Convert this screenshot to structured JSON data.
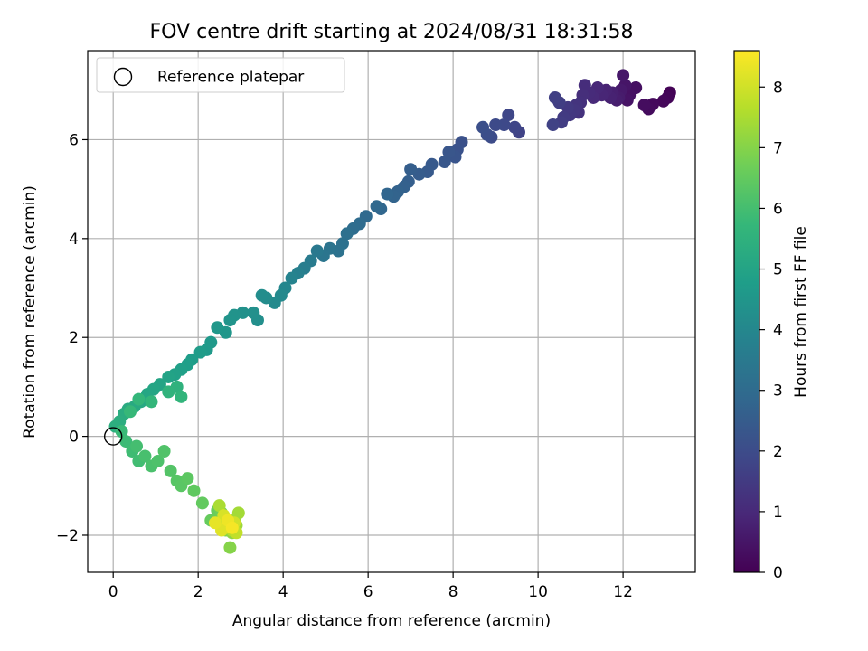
{
  "chart_data": {
    "type": "scatter",
    "title": "FOV centre drift starting at 2024/08/31 18:31:58",
    "xlabel": "Angular distance from reference (arcmin)",
    "ylabel": "Rotation from reference (arcmin)",
    "xlim": [
      -0.6,
      13.7
    ],
    "ylim": [
      -2.75,
      7.8
    ],
    "xticks": [
      0,
      2,
      4,
      6,
      8,
      10,
      12
    ],
    "yticks": [
      -2,
      0,
      2,
      4,
      6
    ],
    "xtick_labels": [
      "0",
      "2",
      "4",
      "6",
      "8",
      "10",
      "12"
    ],
    "ytick_labels": [
      "−2",
      "0",
      "2",
      "4",
      "6"
    ],
    "grid": true,
    "legend": {
      "location": "upper-left",
      "entries": [
        {
          "label": "Reference platepar",
          "marker": "open-circle"
        }
      ]
    },
    "reference_point": {
      "x": 0,
      "y": 0
    },
    "colorbar": {
      "label": "Hours from first FF file",
      "colormap": "viridis",
      "range": [
        0,
        8.6
      ],
      "ticks": [
        0,
        1,
        2,
        3,
        4,
        5,
        6,
        7,
        8
      ],
      "tick_labels": [
        "0",
        "1",
        "2",
        "3",
        "4",
        "5",
        "6",
        "7",
        "8"
      ],
      "stops": [
        "#440154",
        "#482878",
        "#3e4989",
        "#31688e",
        "#26828e",
        "#1f9e89",
        "#35b779",
        "#6ece58",
        "#b5de2b",
        "#fde725"
      ]
    },
    "points": [
      {
        "x": 13.1,
        "y": 6.95,
        "h": 0.05
      },
      {
        "x": 13.05,
        "y": 6.85,
        "h": 0.1
      },
      {
        "x": 12.95,
        "y": 6.78,
        "h": 0.15
      },
      {
        "x": 12.7,
        "y": 6.72,
        "h": 0.2
      },
      {
        "x": 12.6,
        "y": 6.62,
        "h": 0.25
      },
      {
        "x": 12.5,
        "y": 6.7,
        "h": 0.3
      },
      {
        "x": 12.3,
        "y": 7.05,
        "h": 0.35
      },
      {
        "x": 12.15,
        "y": 6.9,
        "h": 0.4
      },
      {
        "x": 12.1,
        "y": 6.8,
        "h": 0.45
      },
      {
        "x": 12.05,
        "y": 7.1,
        "h": 0.5
      },
      {
        "x": 12.0,
        "y": 7.3,
        "h": 0.55
      },
      {
        "x": 11.95,
        "y": 7.0,
        "h": 0.6
      },
      {
        "x": 11.9,
        "y": 6.85,
        "h": 0.65
      },
      {
        "x": 11.85,
        "y": 6.8,
        "h": 0.7
      },
      {
        "x": 11.75,
        "y": 6.95,
        "h": 0.75
      },
      {
        "x": 11.7,
        "y": 6.85,
        "h": 0.8
      },
      {
        "x": 11.6,
        "y": 7.0,
        "h": 0.85
      },
      {
        "x": 11.5,
        "y": 6.9,
        "h": 0.9
      },
      {
        "x": 11.4,
        "y": 7.05,
        "h": 0.95
      },
      {
        "x": 11.3,
        "y": 6.85,
        "h": 1.0
      },
      {
        "x": 11.2,
        "y": 6.95,
        "h": 1.05
      },
      {
        "x": 11.1,
        "y": 7.1,
        "h": 1.1
      },
      {
        "x": 11.05,
        "y": 6.9,
        "h": 1.15
      },
      {
        "x": 11.0,
        "y": 6.75,
        "h": 1.2
      },
      {
        "x": 10.95,
        "y": 6.55,
        "h": 1.25
      },
      {
        "x": 10.9,
        "y": 6.7,
        "h": 1.3
      },
      {
        "x": 10.85,
        "y": 6.6,
        "h": 1.35
      },
      {
        "x": 10.75,
        "y": 6.5,
        "h": 1.4
      },
      {
        "x": 10.7,
        "y": 6.65,
        "h": 1.45
      },
      {
        "x": 10.6,
        "y": 6.45,
        "h": 1.5
      },
      {
        "x": 10.55,
        "y": 6.35,
        "h": 1.55
      },
      {
        "x": 10.5,
        "y": 6.75,
        "h": 1.6
      },
      {
        "x": 10.4,
        "y": 6.85,
        "h": 1.65
      },
      {
        "x": 10.35,
        "y": 6.3,
        "h": 1.7
      },
      {
        "x": 9.55,
        "y": 6.15,
        "h": 1.75
      },
      {
        "x": 9.45,
        "y": 6.25,
        "h": 1.8
      },
      {
        "x": 9.3,
        "y": 6.5,
        "h": 1.85
      },
      {
        "x": 9.2,
        "y": 6.3,
        "h": 1.9
      },
      {
        "x": 9.0,
        "y": 6.3,
        "h": 1.95
      },
      {
        "x": 8.9,
        "y": 6.05,
        "h": 2.0
      },
      {
        "x": 8.8,
        "y": 6.1,
        "h": 2.05
      },
      {
        "x": 8.7,
        "y": 6.25,
        "h": 2.1
      },
      {
        "x": 8.2,
        "y": 5.95,
        "h": 2.15
      },
      {
        "x": 8.1,
        "y": 5.8,
        "h": 2.2
      },
      {
        "x": 8.05,
        "y": 5.65,
        "h": 2.25
      },
      {
        "x": 7.9,
        "y": 5.75,
        "h": 2.3
      },
      {
        "x": 7.8,
        "y": 5.55,
        "h": 2.35
      },
      {
        "x": 7.5,
        "y": 5.5,
        "h": 2.4
      },
      {
        "x": 7.4,
        "y": 5.35,
        "h": 2.45
      },
      {
        "x": 7.2,
        "y": 5.3,
        "h": 2.5
      },
      {
        "x": 7.0,
        "y": 5.4,
        "h": 2.55
      },
      {
        "x": 6.95,
        "y": 5.15,
        "h": 2.6
      },
      {
        "x": 6.85,
        "y": 5.05,
        "h": 2.65
      },
      {
        "x": 6.7,
        "y": 4.95,
        "h": 2.7
      },
      {
        "x": 6.6,
        "y": 4.85,
        "h": 2.75
      },
      {
        "x": 6.45,
        "y": 4.9,
        "h": 2.8
      },
      {
        "x": 6.3,
        "y": 4.6,
        "h": 2.85
      },
      {
        "x": 6.2,
        "y": 4.65,
        "h": 2.9
      },
      {
        "x": 5.95,
        "y": 4.45,
        "h": 2.95
      },
      {
        "x": 5.8,
        "y": 4.3,
        "h": 3.0
      },
      {
        "x": 5.65,
        "y": 4.2,
        "h": 3.05
      },
      {
        "x": 5.5,
        "y": 4.1,
        "h": 3.15
      },
      {
        "x": 5.4,
        "y": 3.9,
        "h": 3.2
      },
      {
        "x": 5.3,
        "y": 3.75,
        "h": 3.25
      },
      {
        "x": 5.1,
        "y": 3.8,
        "h": 3.3
      },
      {
        "x": 4.95,
        "y": 3.65,
        "h": 3.35
      },
      {
        "x": 4.8,
        "y": 3.75,
        "h": 3.45
      },
      {
        "x": 4.65,
        "y": 3.55,
        "h": 3.55
      },
      {
        "x": 4.5,
        "y": 3.4,
        "h": 3.65
      },
      {
        "x": 4.35,
        "y": 3.3,
        "h": 3.75
      },
      {
        "x": 4.2,
        "y": 3.2,
        "h": 3.85
      },
      {
        "x": 4.05,
        "y": 3.0,
        "h": 3.95
      },
      {
        "x": 3.95,
        "y": 2.85,
        "h": 4.05
      },
      {
        "x": 3.8,
        "y": 2.7,
        "h": 4.1
      },
      {
        "x": 3.6,
        "y": 2.8,
        "h": 4.15
      },
      {
        "x": 3.5,
        "y": 2.85,
        "h": 4.2
      },
      {
        "x": 3.4,
        "y": 2.35,
        "h": 4.25
      },
      {
        "x": 3.3,
        "y": 2.5,
        "h": 4.3
      },
      {
        "x": 3.05,
        "y": 2.5,
        "h": 4.35
      },
      {
        "x": 2.85,
        "y": 2.45,
        "h": 4.4
      },
      {
        "x": 2.75,
        "y": 2.35,
        "h": 4.45
      },
      {
        "x": 2.65,
        "y": 2.1,
        "h": 4.5
      },
      {
        "x": 2.45,
        "y": 2.2,
        "h": 4.55
      },
      {
        "x": 2.3,
        "y": 1.9,
        "h": 4.6
      },
      {
        "x": 2.2,
        "y": 1.75,
        "h": 4.65
      },
      {
        "x": 2.05,
        "y": 1.7,
        "h": 4.7
      },
      {
        "x": 1.85,
        "y": 1.55,
        "h": 4.75
      },
      {
        "x": 1.75,
        "y": 1.45,
        "h": 4.8
      },
      {
        "x": 1.6,
        "y": 1.35,
        "h": 4.85
      },
      {
        "x": 1.45,
        "y": 1.25,
        "h": 4.9
      },
      {
        "x": 1.3,
        "y": 1.2,
        "h": 4.95
      },
      {
        "x": 1.1,
        "y": 1.05,
        "h": 5.0
      },
      {
        "x": 0.95,
        "y": 0.95,
        "h": 5.05
      },
      {
        "x": 0.8,
        "y": 0.85,
        "h": 5.1
      },
      {
        "x": 0.65,
        "y": 0.7,
        "h": 5.15
      },
      {
        "x": 0.5,
        "y": 0.6,
        "h": 5.2
      },
      {
        "x": 0.35,
        "y": 0.55,
        "h": 5.25
      },
      {
        "x": 0.25,
        "y": 0.45,
        "h": 5.3
      },
      {
        "x": 0.15,
        "y": 0.3,
        "h": 5.35
      },
      {
        "x": 0.05,
        "y": 0.2,
        "h": 5.4
      },
      {
        "x": 1.5,
        "y": 1.0,
        "h": 5.5
      },
      {
        "x": 1.3,
        "y": 0.9,
        "h": 5.55
      },
      {
        "x": 1.6,
        "y": 0.8,
        "h": 5.6
      },
      {
        "x": 0.9,
        "y": 0.7,
        "h": 5.65
      },
      {
        "x": 0.6,
        "y": 0.75,
        "h": 5.7
      },
      {
        "x": 0.4,
        "y": 0.5,
        "h": 5.75
      },
      {
        "x": 0.2,
        "y": 0.1,
        "h": 5.8
      },
      {
        "x": 0.3,
        "y": -0.1,
        "h": 5.85
      },
      {
        "x": 0.45,
        "y": -0.3,
        "h": 5.9
      },
      {
        "x": 0.6,
        "y": -0.5,
        "h": 5.95
      },
      {
        "x": 0.55,
        "y": -0.2,
        "h": 6.0
      },
      {
        "x": 0.75,
        "y": -0.4,
        "h": 6.05
      },
      {
        "x": 0.9,
        "y": -0.6,
        "h": 6.1
      },
      {
        "x": 1.05,
        "y": -0.5,
        "h": 6.15
      },
      {
        "x": 1.2,
        "y": -0.3,
        "h": 6.2
      },
      {
        "x": 1.35,
        "y": -0.7,
        "h": 6.25
      },
      {
        "x": 1.5,
        "y": -0.9,
        "h": 6.3
      },
      {
        "x": 1.6,
        "y": -1.0,
        "h": 6.35
      },
      {
        "x": 1.75,
        "y": -0.85,
        "h": 6.4
      },
      {
        "x": 1.9,
        "y": -1.1,
        "h": 6.45
      },
      {
        "x": 2.1,
        "y": -1.35,
        "h": 6.5
      },
      {
        "x": 2.3,
        "y": -1.7,
        "h": 6.55
      },
      {
        "x": 2.45,
        "y": -1.5,
        "h": 6.6
      },
      {
        "x": 2.55,
        "y": -1.55,
        "h": 6.7
      },
      {
        "x": 2.6,
        "y": -1.75,
        "h": 6.8
      },
      {
        "x": 2.65,
        "y": -1.9,
        "h": 6.9
      },
      {
        "x": 2.75,
        "y": -2.25,
        "h": 7.0
      },
      {
        "x": 2.8,
        "y": -1.95,
        "h": 7.1
      },
      {
        "x": 2.85,
        "y": -1.7,
        "h": 7.2
      },
      {
        "x": 2.9,
        "y": -1.8,
        "h": 7.3
      },
      {
        "x": 2.95,
        "y": -1.55,
        "h": 7.4
      },
      {
        "x": 2.5,
        "y": -1.4,
        "h": 7.5
      },
      {
        "x": 2.7,
        "y": -1.85,
        "h": 7.6
      },
      {
        "x": 2.8,
        "y": -1.9,
        "h": 7.7
      },
      {
        "x": 2.9,
        "y": -1.95,
        "h": 7.8
      },
      {
        "x": 2.75,
        "y": -1.8,
        "h": 7.9
      },
      {
        "x": 2.85,
        "y": -1.75,
        "h": 8.0
      },
      {
        "x": 2.6,
        "y": -1.6,
        "h": 8.1
      },
      {
        "x": 2.55,
        "y": -1.9,
        "h": 8.2
      },
      {
        "x": 2.4,
        "y": -1.75,
        "h": 8.3
      },
      {
        "x": 2.7,
        "y": -1.7,
        "h": 8.4
      },
      {
        "x": 2.8,
        "y": -1.85,
        "h": 8.5
      }
    ]
  }
}
